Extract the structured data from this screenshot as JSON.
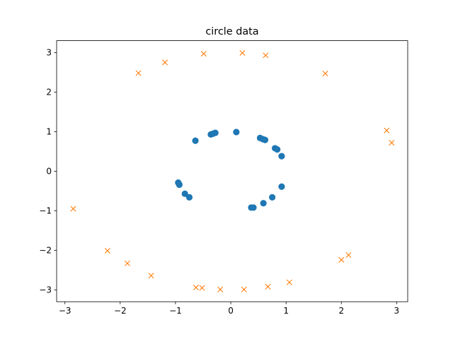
{
  "chart_data": {
    "type": "scatter",
    "title": "circle data",
    "xlabel": "",
    "ylabel": "",
    "xlim": [
      -3.15,
      3.2
    ],
    "ylim": [
      -3.3,
      3.3
    ],
    "xticks": [
      -3,
      -2,
      -1,
      0,
      1,
      2,
      3
    ],
    "yticks": [
      -3,
      -2,
      -1,
      0,
      1,
      2,
      3
    ],
    "xtick_labels": [
      "−3",
      "−2",
      "−1",
      "0",
      "1",
      "2",
      "3"
    ],
    "ytick_labels": [
      "−3",
      "−2",
      "−1",
      "0",
      "1",
      "2",
      "3"
    ],
    "grid": false,
    "series": [
      {
        "marker": "circle",
        "color": "#1f77b4",
        "points": [
          [
            0.1,
            0.99
          ],
          [
            -0.28,
            0.97
          ],
          [
            -0.32,
            0.95
          ],
          [
            -0.36,
            0.93
          ],
          [
            -0.64,
            0.77
          ],
          [
            0.53,
            0.84
          ],
          [
            0.58,
            0.81
          ],
          [
            0.62,
            0.79
          ],
          [
            0.8,
            0.58
          ],
          [
            0.84,
            0.55
          ],
          [
            0.92,
            0.38
          ],
          [
            -0.95,
            -0.29
          ],
          [
            -0.93,
            -0.34
          ],
          [
            -0.83,
            -0.57
          ],
          [
            -0.75,
            -0.66
          ],
          [
            0.92,
            -0.39
          ],
          [
            0.75,
            -0.66
          ],
          [
            0.59,
            -0.81
          ],
          [
            0.41,
            -0.92
          ],
          [
            0.37,
            -0.92
          ]
        ]
      },
      {
        "marker": "x",
        "color": "#ff7f0e",
        "points": [
          [
            -0.49,
            2.97
          ],
          [
            0.21,
            2.99
          ],
          [
            0.63,
            2.93
          ],
          [
            -1.19,
            2.75
          ],
          [
            -1.67,
            2.48
          ],
          [
            1.71,
            2.47
          ],
          [
            2.82,
            1.03
          ],
          [
            2.91,
            0.72
          ],
          [
            -2.85,
            -0.95
          ],
          [
            -2.23,
            -2.01
          ],
          [
            -1.87,
            -2.33
          ],
          [
            -1.44,
            -2.64
          ],
          [
            2.13,
            -2.12
          ],
          [
            2.0,
            -2.24
          ],
          [
            1.06,
            -2.81
          ],
          [
            0.67,
            -2.92
          ],
          [
            0.24,
            -2.99
          ],
          [
            -0.19,
            -2.99
          ],
          [
            -0.52,
            -2.95
          ],
          [
            -0.63,
            -2.94
          ]
        ]
      }
    ]
  }
}
